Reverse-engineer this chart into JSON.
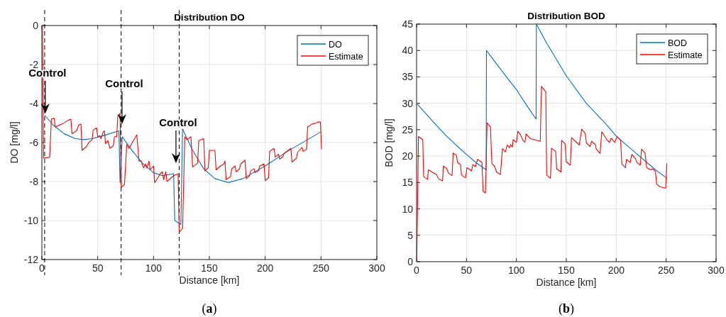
{
  "chart_data": [
    {
      "type": "line",
      "title": "Distribution DO",
      "xlabel": "Distance [km]",
      "ylabel": "DO [mg/l]",
      "xlim": [
        0,
        300
      ],
      "ylim": [
        -12,
        0
      ],
      "xticks": [
        0,
        50,
        100,
        150,
        200,
        250,
        300
      ],
      "yticks": [
        -12,
        -10,
        -8,
        -6,
        -4,
        -2,
        0
      ],
      "grid": true,
      "legend": "top right",
      "series": [
        {
          "name": "DO",
          "color": "#0072bd",
          "x": [
            2.5,
            10,
            20,
            30,
            37,
            45,
            55,
            69,
            70,
            72,
            80,
            90,
            100,
            108,
            118,
            119,
            124.5,
            126,
            135,
            145,
            155,
            167,
            180,
            200,
            220,
            235,
            250
          ],
          "values": [
            -4.6,
            -5.1,
            -5.55,
            -5.8,
            -5.85,
            -5.8,
            -5.65,
            -5.4,
            -8.05,
            -5.7,
            -6.35,
            -7.05,
            -7.55,
            -7.7,
            -7.6,
            -10.0,
            -10.2,
            -5.3,
            -6.4,
            -7.35,
            -7.85,
            -8.05,
            -7.85,
            -7.2,
            -6.45,
            -5.95,
            -5.45
          ]
        },
        {
          "name": "Estimate",
          "color": "#ff0000",
          "x": [
            0.5,
            1.5,
            7,
            8.5,
            11,
            12,
            18,
            24,
            26,
            27,
            31,
            33,
            35,
            36,
            40,
            42,
            45,
            46,
            49,
            50,
            52,
            53,
            55,
            56,
            57,
            59,
            61,
            64,
            65,
            67,
            68,
            70,
            71,
            74,
            76,
            78,
            85,
            87,
            89,
            91,
            93,
            94,
            96,
            97,
            100,
            101,
            104,
            106,
            108,
            109,
            111,
            112,
            118,
            122,
            123,
            126,
            128,
            130,
            133.5,
            135,
            139.5,
            140.5,
            145,
            146,
            149,
            150,
            155,
            156,
            160,
            163,
            164,
            165,
            169,
            170,
            173,
            174,
            177,
            178,
            182,
            183,
            186,
            187,
            190,
            191,
            194,
            195,
            199,
            200,
            203,
            204,
            208,
            209,
            212,
            213,
            216,
            217,
            223,
            224,
            228,
            229,
            233,
            234,
            237,
            238,
            242,
            246,
            247,
            249.5,
            250.5
          ],
          "values": [
            0,
            -6.8,
            -6.75,
            -4.8,
            -4.75,
            -5.2,
            -5.05,
            -4.85,
            -4.8,
            -5.55,
            -5.4,
            -5.1,
            -5.05,
            -6.4,
            -6.2,
            -6.0,
            -5.85,
            -5.35,
            -5.25,
            -5.7,
            -5.65,
            -5.8,
            -5.45,
            -5.4,
            -6.05,
            -5.9,
            -6.3,
            -6.15,
            -5.7,
            -5.7,
            -4.65,
            -4.5,
            -8.3,
            -8.15,
            -6.1,
            -6.3,
            -5.6,
            -6.95,
            -6.95,
            -7.3,
            -7.1,
            -7.3,
            -6.95,
            -7.4,
            -7.2,
            -8.05,
            -7.8,
            -7.6,
            -7.5,
            -7.9,
            -7.5,
            -8.0,
            -7.7,
            -7.6,
            -10.6,
            -10.4,
            -5.7,
            -5.85,
            -5.7,
            -7.25,
            -7.05,
            -5.9,
            -5.8,
            -7.45,
            -7.3,
            -6.4,
            -6.4,
            -7.4,
            -7.2,
            -7.1,
            -6.95,
            -7.9,
            -7.75,
            -7.35,
            -7.2,
            -7.5,
            -7.35,
            -7.1,
            -6.9,
            -7.85,
            -7.7,
            -7.45,
            -7.35,
            -7.55,
            -7.45,
            -7.2,
            -7.1,
            -7.95,
            -7.8,
            -6.45,
            -6.3,
            -6.75,
            -6.6,
            -6.85,
            -6.7,
            -6.55,
            -6.3,
            -7.0,
            -6.8,
            -6.5,
            -6.25,
            -6.45,
            -6.35,
            -5.2,
            -5.05,
            -5.0,
            -4.95,
            -4.95,
            -6.35
          ]
        }
      ],
      "ref_lines": [
        {
          "axis": "x",
          "value": 2.5,
          "color": "#000000",
          "line_style": "dashed"
        },
        {
          "axis": "x",
          "value": 71,
          "color": "#000000",
          "line_style": "dashed"
        },
        {
          "axis": "x",
          "value": 123,
          "color": "#000000",
          "line_style": "dashed"
        }
      ],
      "annotations": [
        {
          "text": "Control",
          "x": 5,
          "y": -2.44
        },
        {
          "text": "Control",
          "x": 73.7,
          "y": -2.98
        },
        {
          "text": "Control",
          "x": 122,
          "y": -4.98
        },
        "(a)"
      ]
    },
    {
      "type": "line",
      "title": "Distribution BOD",
      "xlabel": "Distance [km]",
      "ylabel": "BOD [mg/l]",
      "xlim": [
        0,
        300
      ],
      "ylim": [
        0,
        45
      ],
      "xticks": [
        0,
        50,
        100,
        150,
        200,
        250,
        300
      ],
      "yticks": [
        0,
        5,
        10,
        15,
        20,
        25,
        30,
        35,
        40,
        45
      ],
      "grid": true,
      "legend": "top right",
      "series": [
        {
          "name": "BOD",
          "color": "#0072bd",
          "x": [
            0,
            10,
            20,
            30,
            40,
            50,
            60,
            69.7,
            70,
            80,
            90,
            100,
            110,
            119.7,
            120,
            130,
            150,
            170,
            190,
            200,
            220,
            240,
            251
          ],
          "values": [
            30,
            27.9,
            25.8,
            23.8,
            22.0,
            20.3,
            18.7,
            17.4,
            40,
            37.5,
            35,
            32.6,
            29.7,
            27,
            45,
            41.5,
            35.2,
            30,
            26,
            23.8,
            20.5,
            17.3,
            15.8
          ]
        },
        {
          "name": "Estimate",
          "color": "#ff0000",
          "x": [
            0.2,
            1.9,
            6.2,
            7.1,
            11,
            11.8,
            20,
            22,
            26,
            26.8,
            30,
            32,
            35.5,
            36.7,
            40,
            41,
            44,
            45,
            49,
            50.5,
            53,
            55,
            56.4,
            59,
            61.1,
            64,
            65.5,
            66.6,
            69,
            70.6,
            74,
            75.4,
            78,
            80.1,
            84,
            86,
            89,
            90.8,
            93,
            94.3,
            96,
            96.7,
            100,
            101.4,
            104,
            106.2,
            108.5,
            109.7,
            114,
            123.9,
            125.1,
            129.4,
            130.3,
            134.1,
            135.1,
            139.3,
            140.3,
            144.6,
            145.3,
            148.8,
            150.0,
            154.0,
            155.2,
            163.0,
            165.4,
            168.9,
            170.1,
            173.7,
            175.3,
            179.1,
            180.0,
            183.8,
            185.5,
            189.0,
            190.2,
            193.3,
            194.9,
            198.5,
            200.9,
            204.4,
            205.6,
            209.2,
            210.3,
            213.9,
            215.6,
            219.1,
            220.3,
            224.1,
            225.3,
            228.8,
            230.5,
            234.5,
            236.4,
            239.3,
            240.5,
            243.6,
            245.9,
            249.5,
            250.7
          ],
          "values": [
            0,
            23.7,
            23.1,
            16.1,
            15.6,
            17.4,
            16.5,
            15.7,
            15.3,
            18.1,
            17.7,
            16.8,
            16.3,
            20.6,
            20.1,
            18.8,
            18.4,
            16.4,
            15.9,
            17.8,
            17.5,
            17.2,
            18.4,
            18.0,
            19.4,
            19.0,
            18.8,
            13.4,
            13.0,
            26.3,
            25.5,
            18.6,
            18.1,
            17.0,
            16.5,
            21.4,
            20.8,
            22.1,
            21.6,
            22.2,
            21.7,
            23.1,
            22.6,
            24.7,
            24.1,
            23.1,
            22.6,
            24.2,
            23.3,
            22.8,
            33.2,
            32.2,
            16.4,
            15.8,
            21.5,
            20.9,
            17.6,
            17.0,
            23.0,
            22.3,
            18.9,
            18.3,
            23.5,
            22.1,
            25.1,
            24.3,
            22.5,
            21.8,
            22.8,
            22.2,
            21.3,
            20.5,
            24.6,
            23.6,
            23.2,
            22.6,
            23.4,
            22.6,
            23.7,
            23.0,
            18.5,
            17.8,
            19.4,
            18.8,
            20.3,
            19.6,
            18.9,
            18.3,
            21.3,
            20.6,
            17.8,
            17.4,
            17.6,
            17.1,
            14.7,
            14.2,
            14.1,
            13.9,
            18.6
          ]
        }
      ],
      "annotations": [
        "(b)"
      ]
    }
  ]
}
